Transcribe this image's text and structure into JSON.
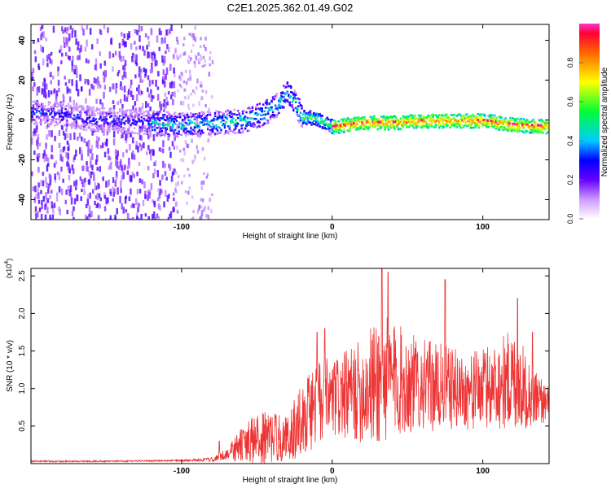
{
  "title": "C2E1.2025.362.01.49.G02",
  "chart_data": [
    {
      "type": "heatmap",
      "title": "C2E1.2025.362.01.49.G02",
      "xlabel": "Height of straight line (km)",
      "ylabel": "Frequency (Hz)",
      "xlim": [
        -200,
        144
      ],
      "ylim": [
        -50,
        48
      ],
      "xticks": [
        -100,
        0,
        100
      ],
      "yticks": [
        -40,
        -20,
        0,
        20,
        40
      ],
      "colorbar": {
        "label": "Normalized spectral amplitude",
        "range": [
          0,
          1
        ],
        "ticks": [
          "0.0",
          "0.2",
          "0.4",
          "0.6",
          "0.8"
        ]
      },
      "ridge": {
        "description_values": "dominant frequency track (Hz) vs height (km)",
        "x": [
          -190,
          -180,
          -160,
          -140,
          -120,
          -100,
          -80,
          -60,
          -45,
          -35,
          -30,
          -20,
          -10,
          0,
          20,
          40,
          60,
          80,
          100,
          120,
          144
        ],
        "y": [
          4,
          3,
          1,
          0,
          -1,
          -2,
          -1,
          0,
          4,
          9,
          15,
          2,
          1,
          -3,
          -1,
          -1,
          0,
          0,
          0,
          -2,
          -3
        ]
      }
    },
    {
      "type": "line",
      "title": "",
      "xlabel": "Height of straight line (km)",
      "ylabel": "SNR (10 * v/v)",
      "yscale_label": "(x10^4)",
      "xlim": [
        -200,
        144
      ],
      "ylim": [
        0,
        2.6
      ],
      "xticks": [
        -100,
        0,
        100
      ],
      "yticks": [
        0.5,
        1.0,
        1.5,
        2.0,
        2.5
      ],
      "series": [
        {
          "name": "SNR",
          "color": "#ee3333",
          "envelope_x": [
            -200,
            -150,
            -100,
            -80,
            -70,
            -60,
            -50,
            -40,
            -30,
            -20,
            -10,
            0,
            10,
            20,
            30,
            40,
            50,
            60,
            70,
            80,
            90,
            100,
            110,
            120,
            130,
            140,
            144
          ],
          "envelope_base": [
            0.03,
            0.03,
            0.04,
            0.05,
            0.12,
            0.22,
            0.28,
            0.32,
            0.3,
            0.55,
            0.75,
            0.8,
            0.85,
            0.9,
            1.0,
            1.05,
            1.0,
            1.0,
            0.95,
            0.95,
            0.9,
            0.95,
            1.0,
            1.05,
            0.9,
            0.8,
            0.75
          ],
          "envelope_amp": [
            0.01,
            0.01,
            0.01,
            0.03,
            0.08,
            0.25,
            0.35,
            0.35,
            0.3,
            0.5,
            0.6,
            0.55,
            0.6,
            0.7,
            0.9,
            0.8,
            0.7,
            0.6,
            0.6,
            0.55,
            0.5,
            0.55,
            0.6,
            0.7,
            0.5,
            0.3,
            0.25
          ],
          "peaks": [
            {
              "x": 33,
              "y": 2.6
            },
            {
              "x": 37,
              "y": 2.55
            },
            {
              "x": 75,
              "y": 2.45
            },
            {
              "x": -10,
              "y": 1.75
            },
            {
              "x": -5,
              "y": 1.8
            },
            {
              "x": 123,
              "y": 2.2
            },
            {
              "x": 133,
              "y": 1.75
            },
            {
              "x": -75,
              "y": 0.3
            }
          ]
        }
      ]
    }
  ]
}
